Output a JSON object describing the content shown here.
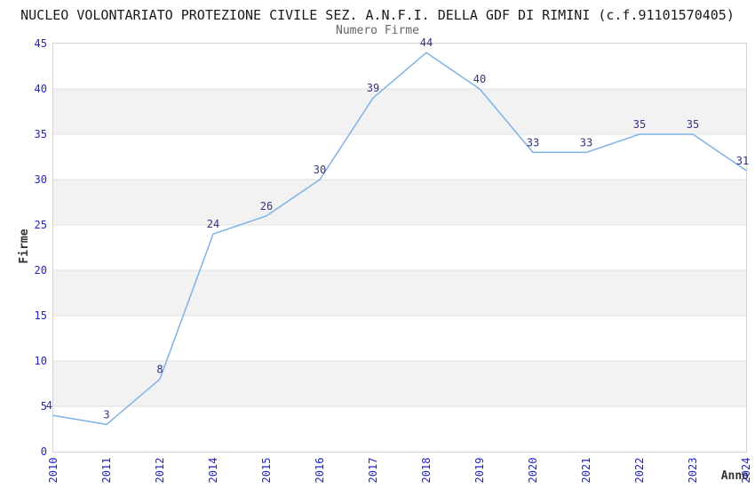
{
  "chart_data": {
    "type": "line",
    "title": "NUCLEO VOLONTARIATO PROTEZIONE CIVILE SEZ. A.N.F.I. DELLA GDF DI RIMINI (c.f.91101570405)",
    "subtitle": "Numero Firme",
    "xlabel": "Anno",
    "ylabel": "Firme",
    "categories": [
      "2010",
      "2011",
      "2012",
      "2014",
      "2015",
      "2016",
      "2017",
      "2018",
      "2019",
      "2020",
      "2021",
      "2022",
      "2023",
      "2024"
    ],
    "values": [
      4,
      3,
      8,
      24,
      26,
      30,
      39,
      44,
      40,
      33,
      33,
      35,
      35,
      31
    ],
    "ylim": [
      0,
      45
    ],
    "yticks": [
      0,
      5,
      10,
      15,
      20,
      25,
      30,
      35,
      40,
      45
    ],
    "grid": "horizontal-gridlines-with-alternating-bands",
    "legend_position": "none",
    "point_labels_shown": true,
    "colors": {
      "line": "#7fb2e6",
      "value_label": "#333388",
      "tick_label": "#2323cc",
      "axis_label": "#333333",
      "title": "#1a1a1a",
      "subtitle": "#666666",
      "band": "#f2f2f2",
      "gridline": "#e0e0e0",
      "border": "#d4d4d4",
      "background": "#ffffff"
    }
  }
}
